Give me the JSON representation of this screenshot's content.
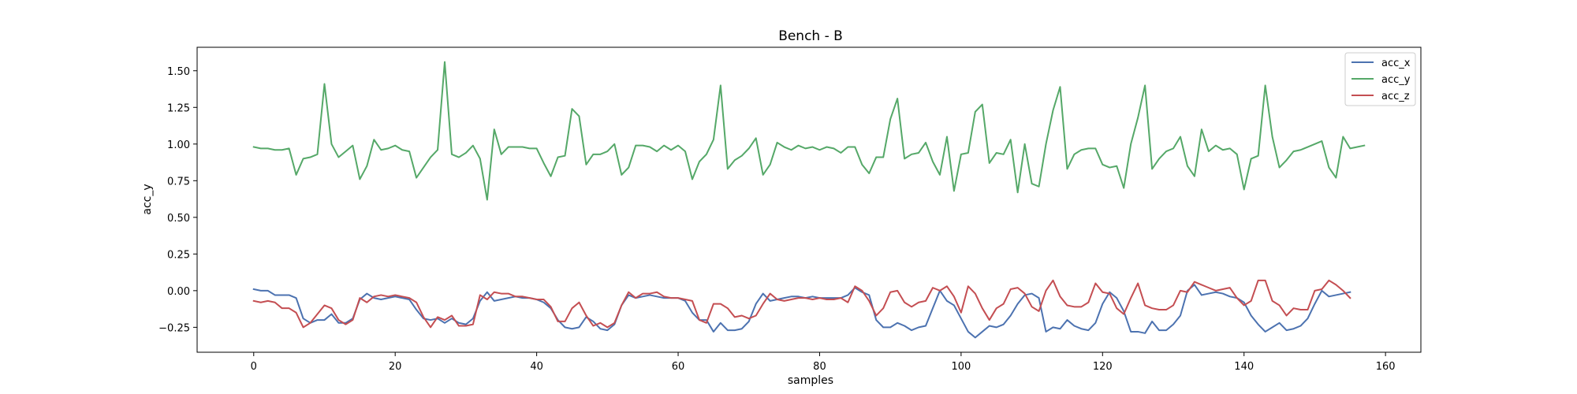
{
  "chart_data": {
    "type": "line",
    "title": "Bench - B",
    "xlabel": "samples",
    "ylabel": "acc_y",
    "xlim": [
      -8,
      165
    ],
    "ylim": [
      -0.42,
      1.66
    ],
    "x_ticks": [
      0,
      20,
      40,
      60,
      80,
      100,
      120,
      140,
      160
    ],
    "y_ticks": [
      -0.25,
      0.0,
      0.25,
      0.5,
      0.75,
      1.0,
      1.25,
      1.5
    ],
    "y_tick_labels": [
      "−0.25",
      "0.00",
      "0.25",
      "0.50",
      "0.75",
      "1.00",
      "1.25",
      "1.50"
    ],
    "legend_position": "top-right",
    "grid": false,
    "series": [
      {
        "name": "acc_x",
        "color": "#4c72b0",
        "values": [
          0.01,
          0.0,
          0.0,
          -0.03,
          -0.03,
          -0.03,
          -0.05,
          -0.19,
          -0.22,
          -0.2,
          -0.2,
          -0.16,
          -0.22,
          -0.22,
          -0.19,
          -0.06,
          -0.02,
          -0.05,
          -0.06,
          -0.05,
          -0.04,
          -0.05,
          -0.06,
          -0.13,
          -0.19,
          -0.2,
          -0.19,
          -0.22,
          -0.19,
          -0.22,
          -0.23,
          -0.19,
          -0.07,
          -0.01,
          -0.07,
          -0.06,
          -0.05,
          -0.04,
          -0.05,
          -0.05,
          -0.06,
          -0.08,
          -0.12,
          -0.2,
          -0.25,
          -0.26,
          -0.25,
          -0.18,
          -0.21,
          -0.26,
          -0.27,
          -0.23,
          -0.1,
          -0.03,
          -0.05,
          -0.04,
          -0.03,
          -0.04,
          -0.05,
          -0.05,
          -0.05,
          -0.07,
          -0.15,
          -0.2,
          -0.2,
          -0.28,
          -0.22,
          -0.27,
          -0.27,
          -0.26,
          -0.21,
          -0.09,
          -0.02,
          -0.07,
          -0.06,
          -0.05,
          -0.04,
          -0.04,
          -0.05,
          -0.04,
          -0.05,
          -0.05,
          -0.05,
          -0.05,
          -0.03,
          0.02,
          -0.01,
          -0.03,
          -0.2,
          -0.25,
          -0.25,
          -0.22,
          -0.24,
          -0.27,
          -0.25,
          -0.24,
          -0.12,
          0.0,
          -0.07,
          -0.1,
          -0.19,
          -0.28,
          -0.32,
          -0.28,
          -0.24,
          -0.25,
          -0.23,
          -0.17,
          -0.09,
          -0.03,
          -0.02,
          -0.05,
          -0.28,
          -0.25,
          -0.26,
          -0.2,
          -0.24,
          -0.26,
          -0.27,
          -0.22,
          -0.09,
          -0.01,
          -0.05,
          -0.14,
          -0.28,
          -0.28,
          -0.29,
          -0.21,
          -0.27,
          -0.27,
          -0.23,
          -0.17,
          0.0,
          0.04,
          -0.03,
          -0.02,
          -0.01,
          -0.02,
          -0.04,
          -0.05,
          -0.08,
          -0.17,
          -0.23,
          -0.28,
          -0.25,
          -0.22,
          -0.27,
          -0.26,
          -0.24,
          -0.19,
          -0.09,
          0.0,
          -0.04,
          -0.03,
          -0.02,
          -0.01
        ]
      },
      {
        "name": "acc_y",
        "color": "#55a868",
        "values": [
          0.98,
          0.97,
          0.97,
          0.96,
          0.96,
          0.97,
          0.79,
          0.9,
          0.91,
          0.93,
          1.41,
          1.0,
          0.91,
          0.95,
          0.99,
          0.76,
          0.85,
          1.03,
          0.96,
          0.97,
          0.99,
          0.96,
          0.95,
          0.77,
          0.84,
          0.91,
          0.96,
          1.56,
          0.93,
          0.91,
          0.94,
          0.99,
          0.9,
          0.62,
          1.1,
          0.93,
          0.98,
          0.98,
          0.98,
          0.97,
          0.97,
          0.87,
          0.78,
          0.91,
          0.92,
          1.24,
          1.19,
          0.86,
          0.93,
          0.93,
          0.95,
          1.0,
          0.79,
          0.84,
          0.99,
          0.99,
          0.98,
          0.95,
          0.99,
          0.96,
          0.99,
          0.95,
          0.76,
          0.88,
          0.93,
          1.03,
          1.4,
          0.83,
          0.89,
          0.92,
          0.97,
          1.04,
          0.79,
          0.86,
          1.01,
          0.98,
          0.96,
          0.99,
          0.97,
          0.98,
          0.96,
          0.98,
          0.97,
          0.94,
          0.98,
          0.98,
          0.86,
          0.8,
          0.91,
          0.91,
          1.17,
          1.31,
          0.9,
          0.93,
          0.94,
          1.01,
          0.88,
          0.79,
          1.05,
          0.68,
          0.93,
          0.94,
          1.22,
          1.27,
          0.87,
          0.94,
          0.93,
          1.03,
          0.67,
          1.0,
          0.73,
          0.71,
          1.0,
          1.23,
          1.39,
          0.83,
          0.93,
          0.96,
          0.97,
          0.97,
          0.86,
          0.84,
          0.85,
          0.7,
          1.0,
          1.18,
          1.4,
          0.83,
          0.9,
          0.95,
          0.97,
          1.05,
          0.85,
          0.78,
          1.1,
          0.95,
          0.99,
          0.96,
          0.97,
          0.93,
          0.69,
          0.9,
          0.92,
          1.4,
          1.05,
          0.84,
          0.89,
          0.95,
          0.96,
          0.98,
          1.0,
          1.02,
          0.84,
          0.77,
          1.05,
          0.97,
          0.98,
          0.99
        ]
      },
      {
        "name": "acc_z",
        "color": "#c44e52",
        "values": [
          -0.07,
          -0.08,
          -0.07,
          -0.08,
          -0.12,
          -0.12,
          -0.15,
          -0.25,
          -0.22,
          -0.16,
          -0.1,
          -0.12,
          -0.2,
          -0.23,
          -0.2,
          -0.05,
          -0.08,
          -0.04,
          -0.03,
          -0.04,
          -0.03,
          -0.04,
          -0.05,
          -0.08,
          -0.18,
          -0.25,
          -0.18,
          -0.2,
          -0.17,
          -0.24,
          -0.24,
          -0.23,
          -0.03,
          -0.06,
          -0.01,
          -0.02,
          -0.02,
          -0.04,
          -0.04,
          -0.05,
          -0.06,
          -0.06,
          -0.11,
          -0.21,
          -0.21,
          -0.12,
          -0.08,
          -0.17,
          -0.24,
          -0.22,
          -0.25,
          -0.22,
          -0.1,
          -0.01,
          -0.05,
          -0.02,
          -0.02,
          -0.01,
          -0.04,
          -0.05,
          -0.05,
          -0.06,
          -0.07,
          -0.2,
          -0.22,
          -0.09,
          -0.09,
          -0.12,
          -0.18,
          -0.17,
          -0.19,
          -0.17,
          -0.09,
          -0.02,
          -0.06,
          -0.07,
          -0.06,
          -0.05,
          -0.05,
          -0.06,
          -0.05,
          -0.06,
          -0.06,
          -0.05,
          -0.08,
          0.03,
          0.0,
          -0.07,
          -0.17,
          -0.12,
          -0.01,
          0.0,
          -0.08,
          -0.11,
          -0.08,
          -0.07,
          0.02,
          0.0,
          0.03,
          -0.04,
          -0.15,
          0.03,
          -0.02,
          -0.12,
          -0.2,
          -0.12,
          -0.09,
          0.01,
          0.02,
          -0.02,
          -0.11,
          -0.14,
          0.0,
          0.07,
          -0.04,
          -0.1,
          -0.11,
          -0.11,
          -0.08,
          0.05,
          -0.01,
          -0.02,
          -0.12,
          -0.16,
          -0.05,
          0.05,
          -0.1,
          -0.12,
          -0.13,
          -0.13,
          -0.1,
          0.0,
          -0.01,
          0.06,
          0.04,
          0.02,
          0.0,
          0.01,
          0.02,
          -0.05,
          -0.1,
          -0.07,
          0.07,
          0.07,
          -0.07,
          -0.1,
          -0.17,
          -0.12,
          -0.13,
          -0.13,
          0.0,
          0.01,
          0.07,
          0.04,
          0.0,
          -0.05
        ]
      }
    ]
  }
}
